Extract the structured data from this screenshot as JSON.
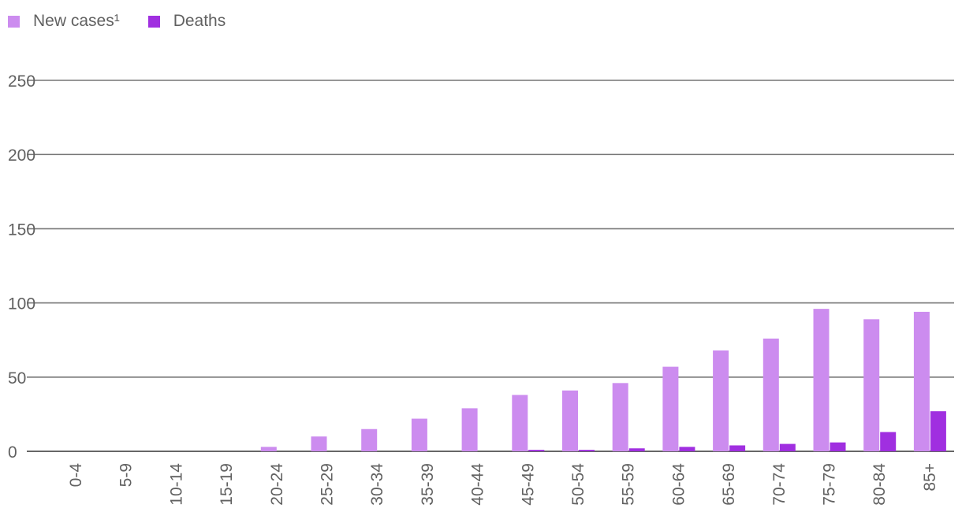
{
  "chart_data": {
    "type": "bar",
    "title": "",
    "xlabel": "",
    "ylabel": "",
    "ylim": [
      0,
      250
    ],
    "yticks": [
      0,
      50,
      100,
      150,
      200,
      250
    ],
    "grid": true,
    "legend_position": "top-left",
    "categories": [
      "0-4",
      "5-9",
      "10-14",
      "15-19",
      "20-24",
      "25-29",
      "30-34",
      "35-39",
      "40-44",
      "45-49",
      "50-54",
      "55-59",
      "60-64",
      "65-69",
      "70-74",
      "75-79",
      "80-84",
      "85+"
    ],
    "series": [
      {
        "name": "New cases¹",
        "color": "#cc8cef",
        "values": [
          0,
          0,
          0,
          0,
          3,
          10,
          15,
          22,
          29,
          38,
          41,
          46,
          57,
          68,
          76,
          96,
          89,
          94
        ]
      },
      {
        "name": "Deaths",
        "color": "#a02fe0",
        "values": [
          0,
          0,
          0,
          0,
          0,
          0,
          0,
          0,
          0,
          1,
          1,
          2,
          3,
          4,
          5,
          6,
          13,
          27
        ]
      }
    ]
  }
}
